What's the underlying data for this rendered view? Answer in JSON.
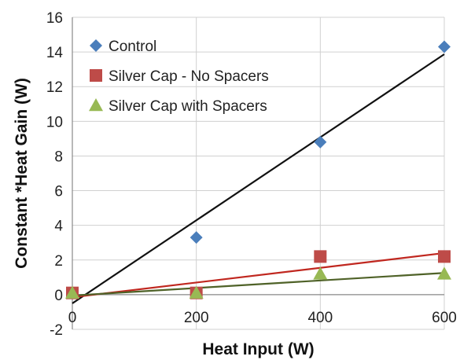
{
  "chart_data": {
    "type": "scatter",
    "xlabel": "Heat Input (W)",
    "ylabel": "Constant *Heat Gain (W)",
    "xlim": [
      0,
      600
    ],
    "ylim": [
      -2,
      16
    ],
    "xticks": [
      "0",
      "200",
      "400",
      "600"
    ],
    "yticks": [
      "-2",
      "0",
      "2",
      "4",
      "6",
      "8",
      "10",
      "12",
      "14",
      "16"
    ],
    "grid": true,
    "legend_position": "top-left",
    "x": [
      0,
      200,
      400,
      600
    ],
    "series": [
      {
        "name": "Control",
        "marker": "diamond",
        "color": "#4a7ebb",
        "trendline_color": "#111111",
        "values": [
          0.1,
          3.3,
          8.8,
          14.3
        ],
        "trendline": {
          "slope": 0.02395,
          "intercept": -0.5
        }
      },
      {
        "name": "Silver Cap - No Spacers",
        "marker": "square",
        "color": "#be4b48",
        "trendline_color": "#c0271f",
        "values": [
          0.1,
          0.1,
          2.2,
          2.2
        ],
        "trendline": {
          "slope": 0.00425,
          "intercept": -0.15
        }
      },
      {
        "name": "Silver Cap with Spacers",
        "marker": "triangle",
        "color": "#98b954",
        "trendline_color": "#4f6228",
        "values": [
          0.1,
          0.1,
          1.2,
          1.2
        ],
        "trendline": {
          "slope": 0.00217,
          "intercept": -0.05
        }
      }
    ]
  }
}
